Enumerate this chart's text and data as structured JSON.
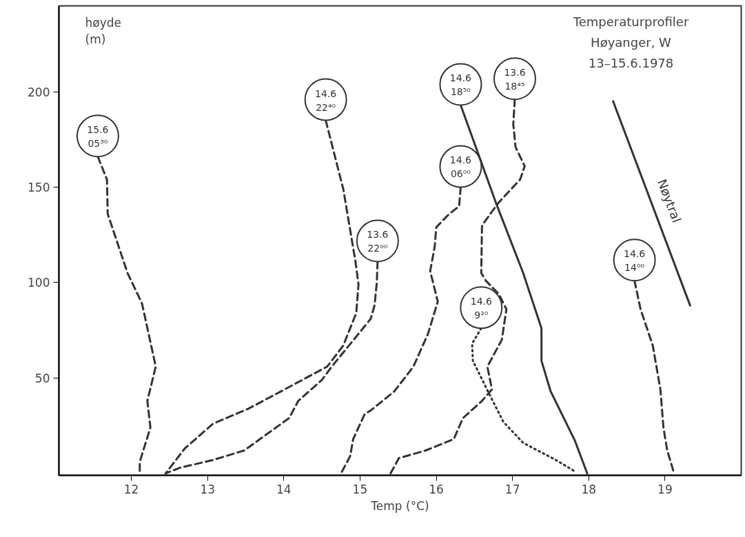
{
  "chart_data": {
    "type": "line",
    "title": "Temperaturprofiler",
    "subtitle": "Høyanger, W",
    "annotations": [
      "13–15.6.1978"
    ],
    "xlabel": "Temp (°C)",
    "ylabel": "høyde (m)",
    "xlim": [
      11.05,
      20
    ],
    "ylim": [
      -1,
      245
    ],
    "xticks": [
      12,
      13,
      14,
      15,
      16,
      17,
      18,
      19
    ],
    "yticks": [
      50,
      100,
      150,
      200
    ],
    "grid": false,
    "series": [
      {
        "name": "15.6 05³⁰",
        "color": "#333333",
        "line_style": "dashed",
        "x": [
          11.56,
          11.68,
          11.69,
          11.95,
          12.14,
          12.32,
          12.21,
          12.25,
          12.11,
          12.11
        ],
        "values": [
          166,
          154,
          136,
          105,
          89,
          56,
          38,
          24,
          6,
          0
        ]
      },
      {
        "name": "14.6 22⁴⁰",
        "color": "#333333",
        "line_style": "dashed",
        "x": [
          14.55,
          14.78,
          14.94,
          14.98,
          14.95,
          14.78,
          14.57,
          14.01,
          13.54,
          13.07,
          12.7,
          12.45
        ],
        "values": [
          185,
          149,
          111,
          99,
          84,
          67,
          56,
          44,
          34,
          26,
          13,
          0
        ]
      },
      {
        "name": "13.6 22⁰⁰",
        "color": "#333333",
        "line_style": "dashed",
        "x": [
          15.23,
          15.22,
          15.19,
          15.14,
          14.63,
          14.5,
          14.19,
          14.07,
          13.48,
          13.07,
          12.64,
          12.45
        ],
        "values": [
          111,
          100,
          88,
          81,
          56,
          49,
          38,
          29,
          12,
          7,
          3,
          0
        ]
      },
      {
        "name": "14.6 06⁰⁰",
        "color": "#333333",
        "line_style": "dashed",
        "x": [
          16.32,
          16.3,
          16.17,
          16.0,
          15.98,
          15.92,
          16.02,
          15.89,
          15.7,
          15.45,
          15.14,
          15.06,
          14.91,
          14.87,
          14.75
        ],
        "values": [
          150,
          140,
          136,
          129,
          119,
          106,
          90,
          73,
          56,
          43,
          33,
          31,
          18,
          9,
          0
        ]
      },
      {
        "name": "14.6 18⁵⁰",
        "color": "#333333",
        "line_style": "solid",
        "x": [
          16.32,
          16.79,
          17.14,
          17.38,
          17.38,
          17.5,
          17.82,
          17.98
        ],
        "values": [
          193,
          141,
          105,
          76,
          59,
          43,
          17,
          0
        ]
      },
      {
        "name": "13.6 18⁴⁵",
        "color": "#333333",
        "line_style": "dashed",
        "x": [
          17.03,
          17.01,
          17.04,
          17.16,
          17.1,
          16.82,
          16.6,
          16.59,
          16.65,
          16.82,
          16.92,
          16.86,
          16.67,
          16.73,
          16.6,
          16.35,
          16.23,
          15.86,
          15.51,
          15.4
        ],
        "values": [
          196,
          183,
          171,
          161,
          154,
          142,
          130,
          105,
          101,
          94,
          86,
          70,
          56,
          44,
          38,
          29,
          18,
          12,
          8,
          0
        ]
      },
      {
        "name": "14.6 9²⁰",
        "color": "#333333",
        "line_style": "dotted",
        "x": [
          16.59,
          16.47,
          16.48,
          16.69,
          16.88,
          17.14,
          17.57,
          17.82
        ],
        "values": [
          76,
          68,
          59,
          42,
          27,
          16,
          7,
          1
        ]
      },
      {
        "name": "14.6 14⁰⁰",
        "color": "#333333",
        "line_style": "dashed",
        "x": [
          18.6,
          18.68,
          18.84,
          18.94,
          18.98,
          19.03,
          19.12
        ],
        "values": [
          101,
          86,
          67,
          44,
          24,
          12,
          0
        ]
      },
      {
        "name": "Nøytral",
        "color": "#333333",
        "line_style": "solid",
        "x": [
          18.32,
          19.33
        ],
        "values": [
          195,
          88
        ]
      }
    ]
  }
}
